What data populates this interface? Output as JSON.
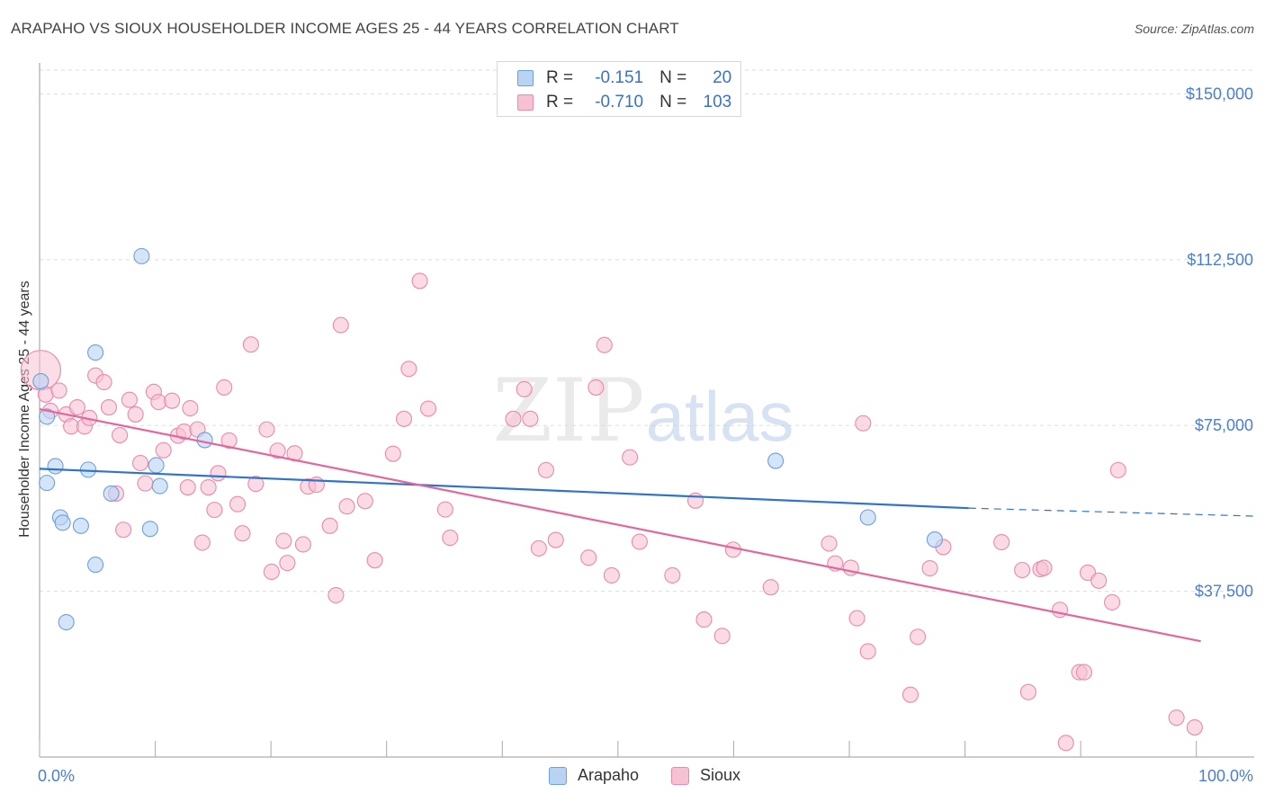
{
  "header": {
    "title": "ARAPAHO VS SIOUX HOUSEHOLDER INCOME AGES 25 - 44 YEARS CORRELATION CHART",
    "source": "Source: ZipAtlas.com"
  },
  "watermark": {
    "part1": "ZIP",
    "part2": "atlas"
  },
  "legend_top": {
    "rows": [
      {
        "label_r": "R =",
        "r": "-0.151",
        "label_n": "N =",
        "n": "20"
      },
      {
        "label_r": "R =",
        "r": "-0.710",
        "label_n": "N =",
        "n": "103"
      }
    ]
  },
  "legend_bottom": {
    "items": [
      "Arapaho",
      "Sioux"
    ]
  },
  "colors": {
    "arapaho_fill": "#b9d3f3",
    "arapaho_stroke": "#6f9fdc",
    "arapaho_line": "#2f74c9",
    "sioux_fill": "#f6c1d3",
    "sioux_stroke": "#e98aab",
    "sioux_line": "#e2679a",
    "tick_text": "#4a7fcf",
    "grid": "#dddddd"
  },
  "chart_data": {
    "type": "scatter",
    "title": "ARAPAHO VS SIOUX HOUSEHOLDER INCOME AGES 25 - 44 YEARS CORRELATION CHART",
    "xlabel": "",
    "ylabel": "Householder Income Ages 25 - 44 years",
    "xlim": [
      0,
      100
    ],
    "ylim": [
      0,
      157000
    ],
    "x_tick_labels": [
      "0.0%",
      "100.0%"
    ],
    "y_ticks": [
      37500,
      75000,
      112500,
      150000
    ],
    "y_tick_labels": [
      "$37,500",
      "$75,000",
      "$112,500",
      "$150,000"
    ],
    "grid": true,
    "legend_position": "top-center",
    "series": [
      {
        "name": "Arapaho",
        "r": -0.151,
        "n": 20,
        "trend": {
          "x": [
            0,
            76.5
          ],
          "y": [
            65200,
            56300
          ],
          "dashed_to_x": 100,
          "dashed_to_y": 54500
        },
        "points": [
          [
            0.1,
            85000
          ],
          [
            0.6,
            77000
          ],
          [
            0.6,
            62000
          ],
          [
            1.3,
            65800
          ],
          [
            1.7,
            54200
          ],
          [
            1.9,
            53000
          ],
          [
            2.2,
            30500
          ],
          [
            3.4,
            52300
          ],
          [
            4.0,
            65000
          ],
          [
            4.6,
            43500
          ],
          [
            4.6,
            91500
          ],
          [
            5.9,
            59600
          ],
          [
            8.4,
            113300
          ],
          [
            9.1,
            51600
          ],
          [
            9.6,
            66000
          ],
          [
            9.9,
            61300
          ],
          [
            13.6,
            71700
          ],
          [
            60.6,
            67000
          ],
          [
            68.2,
            54200
          ],
          [
            73.7,
            49200
          ]
        ]
      },
      {
        "name": "Sioux",
        "r": -0.71,
        "n": 103,
        "trend": {
          "x": [
            0,
            95.6
          ],
          "y": [
            78700,
            26200
          ]
        },
        "points": [
          [
            0.1,
            87500
          ],
          [
            0.5,
            82000
          ],
          [
            0.9,
            78300
          ],
          [
            1.6,
            82900
          ],
          [
            2.2,
            77500
          ],
          [
            2.6,
            74800
          ],
          [
            3.1,
            79100
          ],
          [
            3.7,
            74800
          ],
          [
            4.1,
            76700
          ],
          [
            4.6,
            86300
          ],
          [
            5.3,
            84800
          ],
          [
            5.7,
            79100
          ],
          [
            6.3,
            59600
          ],
          [
            6.6,
            72800
          ],
          [
            6.9,
            51400
          ],
          [
            7.4,
            80800
          ],
          [
            7.9,
            77500
          ],
          [
            8.3,
            66500
          ],
          [
            8.7,
            61900
          ],
          [
            9.4,
            82600
          ],
          [
            9.8,
            80300
          ],
          [
            10.2,
            69400
          ],
          [
            10.9,
            80600
          ],
          [
            11.4,
            72700
          ],
          [
            11.9,
            73600
          ],
          [
            12.2,
            61000
          ],
          [
            12.4,
            78900
          ],
          [
            13.0,
            74100
          ],
          [
            13.4,
            48500
          ],
          [
            13.9,
            61000
          ],
          [
            14.4,
            55900
          ],
          [
            14.7,
            64200
          ],
          [
            15.2,
            83600
          ],
          [
            15.6,
            71600
          ],
          [
            16.3,
            57200
          ],
          [
            16.7,
            50600
          ],
          [
            17.4,
            93300
          ],
          [
            17.8,
            61800
          ],
          [
            18.7,
            74100
          ],
          [
            19.1,
            41900
          ],
          [
            19.6,
            69300
          ],
          [
            20.1,
            48900
          ],
          [
            20.4,
            43900
          ],
          [
            21.0,
            68700
          ],
          [
            21.7,
            48100
          ],
          [
            22.1,
            61200
          ],
          [
            22.8,
            61600
          ],
          [
            23.9,
            52300
          ],
          [
            24.4,
            36600
          ],
          [
            24.8,
            97700
          ],
          [
            25.3,
            56700
          ],
          [
            26.8,
            57900
          ],
          [
            27.6,
            44500
          ],
          [
            29.1,
            68600
          ],
          [
            30.0,
            76500
          ],
          [
            30.4,
            87800
          ],
          [
            31.3,
            107700
          ],
          [
            32.0,
            78800
          ],
          [
            33.4,
            56000
          ],
          [
            33.8,
            49600
          ],
          [
            39.0,
            76500
          ],
          [
            39.9,
            83200
          ],
          [
            40.4,
            76500
          ],
          [
            41.1,
            47200
          ],
          [
            41.7,
            64900
          ],
          [
            42.5,
            49100
          ],
          [
            45.2,
            45100
          ],
          [
            45.8,
            83600
          ],
          [
            46.5,
            93200
          ],
          [
            47.1,
            41100
          ],
          [
            48.6,
            67800
          ],
          [
            49.4,
            48700
          ],
          [
            52.1,
            41100
          ],
          [
            54.0,
            58000
          ],
          [
            54.7,
            31100
          ],
          [
            56.2,
            27400
          ],
          [
            57.1,
            46900
          ],
          [
            60.2,
            38400
          ],
          [
            65.0,
            48300
          ],
          [
            65.5,
            43800
          ],
          [
            66.8,
            42800
          ],
          [
            67.3,
            31400
          ],
          [
            67.8,
            75500
          ],
          [
            68.2,
            23900
          ],
          [
            71.7,
            14100
          ],
          [
            72.3,
            27200
          ],
          [
            73.3,
            42700
          ],
          [
            74.4,
            47500
          ],
          [
            79.2,
            48600
          ],
          [
            80.9,
            42300
          ],
          [
            81.4,
            14700
          ],
          [
            82.4,
            42500
          ],
          [
            82.7,
            42800
          ],
          [
            84.0,
            33300
          ],
          [
            84.5,
            3200
          ],
          [
            85.6,
            19200
          ],
          [
            86.0,
            19200
          ],
          [
            86.3,
            41700
          ],
          [
            87.2,
            39900
          ],
          [
            88.3,
            35000
          ],
          [
            88.8,
            64900
          ],
          [
            93.6,
            8900
          ],
          [
            95.1,
            6700
          ]
        ]
      }
    ]
  }
}
